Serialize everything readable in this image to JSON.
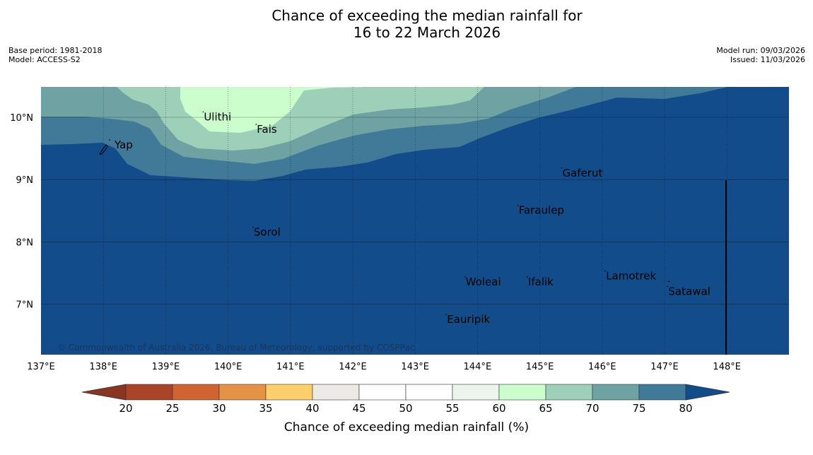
{
  "title": {
    "line1": "Chance of exceeding the median rainfall for",
    "line2": "16 to 22 March 2026"
  },
  "meta_left": {
    "base_period": "Base period: 1981-2018",
    "model": "Model: ACCESS-S2"
  },
  "meta_right": {
    "model_run": "Model run: 09/03/2026",
    "issued": "Issued: 11/03/2026"
  },
  "map": {
    "lon_labels": [
      "137°E",
      "138°E",
      "139°E",
      "140°E",
      "141°E",
      "142°E",
      "143°E",
      "144°E",
      "145°E",
      "146°E",
      "147°E",
      "148°E"
    ],
    "lat_labels": [
      "10°N",
      "9°N",
      "8°N",
      "7°N"
    ],
    "places": [
      {
        "name": "Yap",
        "lon": 138.1,
        "lat": 9.5
      },
      {
        "name": "Ulithi",
        "lon": 139.6,
        "lat": 9.95
      },
      {
        "name": "Fais",
        "lon": 140.45,
        "lat": 9.75
      },
      {
        "name": "Gaferut",
        "lon": 145.35,
        "lat": 9.05
      },
      {
        "name": "Faraulep",
        "lon": 144.65,
        "lat": 8.45
      },
      {
        "name": "Sorol",
        "lon": 140.4,
        "lat": 8.1
      },
      {
        "name": "Lamotrek",
        "lon": 146.05,
        "lat": 7.4
      },
      {
        "name": "Woleai",
        "lon": 143.8,
        "lat": 7.3
      },
      {
        "name": "Ifalik",
        "lon": 144.8,
        "lat": 7.3
      },
      {
        "name": "Satawal",
        "lon": 147.05,
        "lat": 7.15
      },
      {
        "name": "Eauripik",
        "lon": 143.5,
        "lat": 6.7
      }
    ],
    "copyright": "© Commonwealth of Australia 2026, Bureau of Meteorology, supported by COSPPac",
    "colors": {
      "c80plus": "#134c8a",
      "c75_80": "#417a99",
      "c70_75": "#6ea2a3",
      "c65_70": "#9ecfb8",
      "c60_65": "#ccfdcc"
    }
  },
  "colorbar": {
    "ticks": [
      "20",
      "25",
      "30",
      "35",
      "40",
      "45",
      "50",
      "55",
      "60",
      "65",
      "70",
      "75",
      "80"
    ],
    "colors": [
      "#aa4428",
      "#cf6331",
      "#e39246",
      "#fecf6c",
      "#ede9e4",
      "#ffffff",
      "#ffffff",
      "#ebf5eb",
      "#ccfdcc",
      "#9ecfb8",
      "#6ea2a3",
      "#417a99"
    ],
    "under_color": "#8a3522",
    "over_color": "#134c8a",
    "label": "Chance of exceeding median rainfall (%)"
  }
}
